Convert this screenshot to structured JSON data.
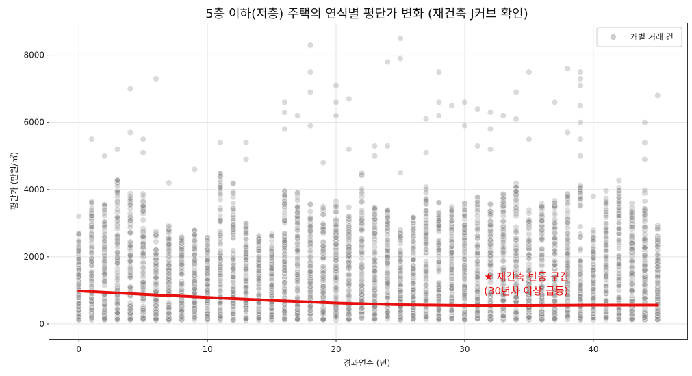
{
  "chart_data": {
    "type": "scatter",
    "title": "5층 이하(저층) 주택의 연식별 평단가 변화 (재건축 J커브 확인)",
    "xlabel": "경과연수 (년)",
    "ylabel": "평단가 (만원/㎡)",
    "xlim": [
      -2.3,
      47.3
    ],
    "ylim": [
      -450,
      8950
    ],
    "x_ticks": [
      0,
      10,
      20,
      30,
      40
    ],
    "y_ticks": [
      0,
      2000,
      4000,
      6000,
      8000
    ],
    "grid": true,
    "legend": {
      "position": "top-right",
      "entries": [
        "개별 거래 건"
      ]
    },
    "series": [
      {
        "name": "개별 거래 건",
        "kind": "scatter",
        "color": "#8c8c8c",
        "x_range": [
          0,
          45
        ],
        "typical_max_by_year": [
          2700,
          3700,
          3600,
          4300,
          3900,
          3900,
          2900,
          3100,
          2800,
          2800,
          2600,
          4500,
          4200,
          3000,
          2700,
          2700,
          4000,
          3900,
          3600,
          3500,
          3800,
          3500,
          4500,
          3500,
          3400,
          3000,
          3200,
          4100,
          3700,
          3500,
          3600,
          3800,
          3700,
          3900,
          4200,
          3400,
          3600,
          3800,
          3900,
          4200,
          2800,
          4000,
          4300,
          3600,
          4100,
          3000
        ],
        "outliers": [
          {
            "x": 0,
            "y": 3200
          },
          {
            "x": 1,
            "y": 5500
          },
          {
            "x": 2,
            "y": 5000
          },
          {
            "x": 3,
            "y": 5200
          },
          {
            "x": 4,
            "y": 7000
          },
          {
            "x": 4,
            "y": 5700
          },
          {
            "x": 5,
            "y": 5500
          },
          {
            "x": 5,
            "y": 5100
          },
          {
            "x": 6,
            "y": 7300
          },
          {
            "x": 7,
            "y": 4200
          },
          {
            "x": 9,
            "y": 4600
          },
          {
            "x": 11,
            "y": 5400
          },
          {
            "x": 13,
            "y": 5400
          },
          {
            "x": 13,
            "y": 4900
          },
          {
            "x": 16,
            "y": 6600
          },
          {
            "x": 16,
            "y": 6300
          },
          {
            "x": 16,
            "y": 5800
          },
          {
            "x": 17,
            "y": 6200
          },
          {
            "x": 18,
            "y": 8300
          },
          {
            "x": 18,
            "y": 7500
          },
          {
            "x": 18,
            "y": 6900
          },
          {
            "x": 18,
            "y": 5900
          },
          {
            "x": 19,
            "y": 4800
          },
          {
            "x": 20,
            "y": 7100
          },
          {
            "x": 20,
            "y": 6600
          },
          {
            "x": 20,
            "y": 6200
          },
          {
            "x": 21,
            "y": 6700
          },
          {
            "x": 21,
            "y": 5200
          },
          {
            "x": 23,
            "y": 5300
          },
          {
            "x": 23,
            "y": 5000
          },
          {
            "x": 24,
            "y": 7800
          },
          {
            "x": 24,
            "y": 5300
          },
          {
            "x": 25,
            "y": 8500
          },
          {
            "x": 25,
            "y": 7900
          },
          {
            "x": 25,
            "y": 4500
          },
          {
            "x": 27,
            "y": 6100
          },
          {
            "x": 27,
            "y": 5100
          },
          {
            "x": 28,
            "y": 7500
          },
          {
            "x": 28,
            "y": 6600
          },
          {
            "x": 28,
            "y": 6200
          },
          {
            "x": 29,
            "y": 6500
          },
          {
            "x": 30,
            "y": 6600
          },
          {
            "x": 30,
            "y": 5900
          },
          {
            "x": 31,
            "y": 6400
          },
          {
            "x": 31,
            "y": 5300
          },
          {
            "x": 32,
            "y": 6300
          },
          {
            "x": 32,
            "y": 5800
          },
          {
            "x": 32,
            "y": 5200
          },
          {
            "x": 33,
            "y": 6200
          },
          {
            "x": 34,
            "y": 6900
          },
          {
            "x": 34,
            "y": 6100
          },
          {
            "x": 35,
            "y": 7500
          },
          {
            "x": 35,
            "y": 5500
          },
          {
            "x": 37,
            "y": 6600
          },
          {
            "x": 38,
            "y": 7600
          },
          {
            "x": 38,
            "y": 5700
          },
          {
            "x": 39,
            "y": 7500
          },
          {
            "x": 39,
            "y": 7300
          },
          {
            "x": 39,
            "y": 7100
          },
          {
            "x": 39,
            "y": 6500
          },
          {
            "x": 39,
            "y": 6000
          },
          {
            "x": 39,
            "y": 5500
          },
          {
            "x": 39,
            "y": 5000
          },
          {
            "x": 40,
            "y": 3800
          },
          {
            "x": 44,
            "y": 6000
          },
          {
            "x": 44,
            "y": 5400
          },
          {
            "x": 44,
            "y": 4900
          },
          {
            "x": 45,
            "y": 6800
          }
        ]
      },
      {
        "name": "trend",
        "kind": "line",
        "color": "#e8100f",
        "x": [
          0,
          5,
          10,
          15,
          20,
          25,
          30,
          35,
          40,
          45
        ],
        "y": [
          980,
          880,
          790,
          700,
          620,
          570,
          550,
          550,
          560,
          560
        ]
      }
    ],
    "annotation": {
      "lines": [
        "★ 재건축 반등 구간",
        "(30년차 이상 급등)"
      ],
      "x": 31.5,
      "y": 1300,
      "color": "#e8100f"
    }
  }
}
